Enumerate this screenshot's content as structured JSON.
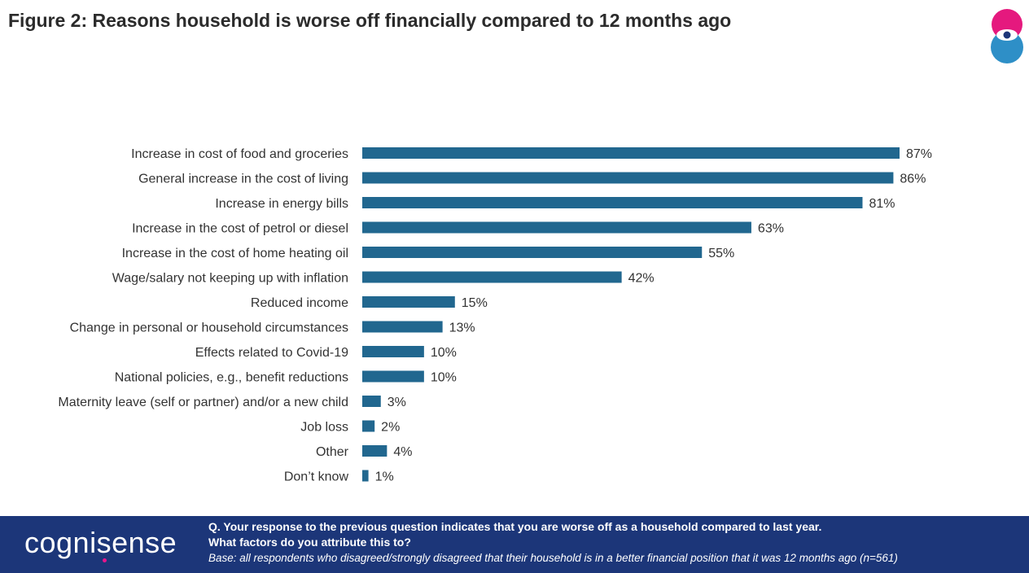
{
  "header": {
    "title": "Figure 2: Reasons household is worse off financially compared to 12 months ago",
    "logo_icon": "eye-logo-icon"
  },
  "chart_data": {
    "type": "bar",
    "orientation": "horizontal",
    "categories": [
      "Increase in cost of food and groceries",
      "General increase in the cost of living",
      "Increase in energy bills",
      "Increase in the cost of petrol or diesel",
      "Increase in the cost of home heating oil",
      "Wage/salary not keeping up with inflation",
      "Reduced income",
      "Change in personal or household circumstances",
      "Effects related to Covid-19",
      "National policies, e.g., benefit reductions",
      "Maternity leave (self or partner) and/or a new child",
      "Job loss",
      "Other",
      "Don’t know"
    ],
    "values": [
      87,
      86,
      81,
      63,
      55,
      42,
      15,
      13,
      10,
      10,
      3,
      2,
      4,
      1
    ],
    "data_labels": [
      "87%",
      "86%",
      "81%",
      "63%",
      "55%",
      "42%",
      "15%",
      "13%",
      "10%",
      "10%",
      "3%",
      "2%",
      "4%",
      "1%"
    ],
    "xlim": [
      0,
      87
    ],
    "bar_color": "#21678f",
    "grid": false,
    "legend": "none"
  },
  "footer": {
    "brand": "cognisense",
    "question_line1": "Q. Your response to the previous question indicates that you are worse off as a household compared to last year.",
    "question_line2": "What factors do you attribute this to?",
    "base_note": "Base: all respondents who disagreed/strongly disagreed that their household is in a better financial position that it was 12 months ago (n=561)",
    "background_color": "#1c3679"
  }
}
